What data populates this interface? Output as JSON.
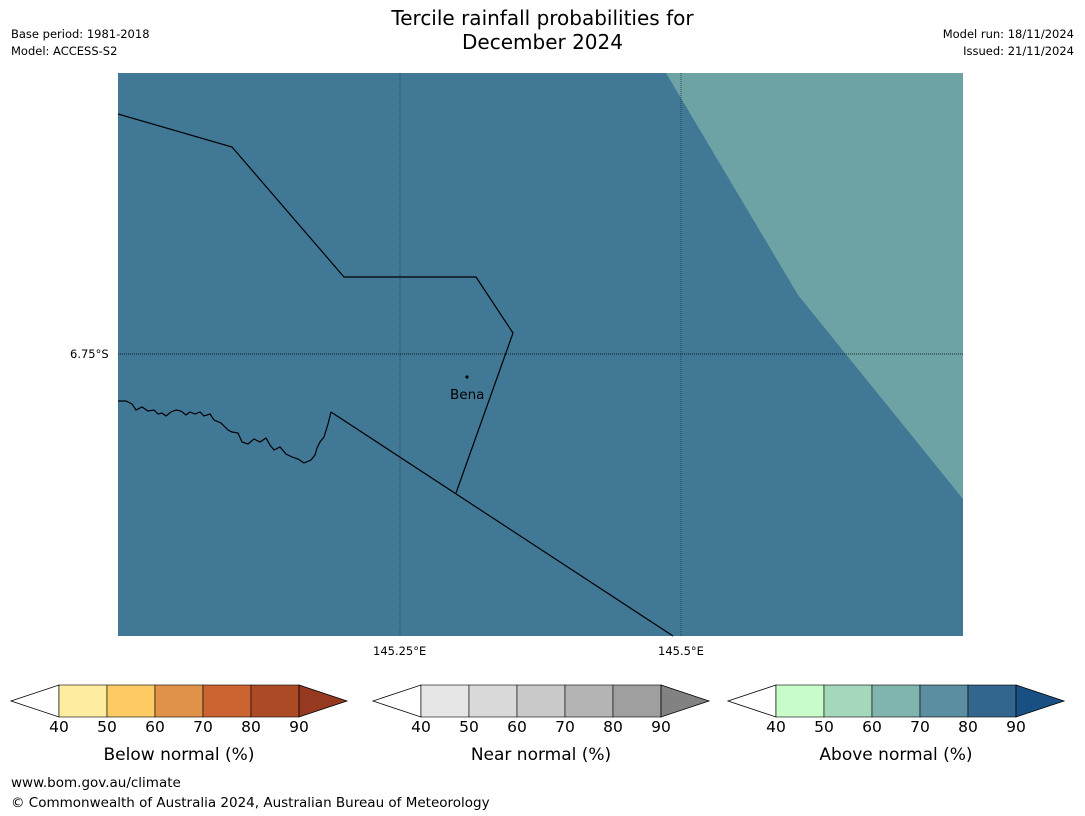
{
  "title": {
    "line1": "Tercile rainfall probabilities for",
    "line2": "December 2024"
  },
  "meta_left": {
    "base_period": "Base period: 1981-2018",
    "model": "Model: ACCESS-S2"
  },
  "meta_right": {
    "model_run": "Model run: 18/11/2024",
    "issued": "Issued: 21/11/2024"
  },
  "map": {
    "lat_label": "6.75°S",
    "lon_labels": [
      "145.25°E",
      "145.5°E"
    ],
    "place_label": "Bena",
    "colors": {
      "above_60_70": "#6ea3a6",
      "above_80_90": "#407896",
      "border": "#000000"
    }
  },
  "colorbars": [
    {
      "label": "Below normal (%)",
      "ticks": [
        "40",
        "50",
        "60",
        "70",
        "80",
        "90"
      ],
      "colors": [
        "#ffffff",
        "#feeca0",
        "#fdca64",
        "#e09248",
        "#cc6432",
        "#ad4a26",
        "#953a20"
      ]
    },
    {
      "label": "Near normal (%)",
      "ticks": [
        "40",
        "50",
        "60",
        "70",
        "80",
        "90"
      ],
      "colors": [
        "#ffffff",
        "#e6e6e6",
        "#d9d9d9",
        "#c9c9c9",
        "#b4b4b4",
        "#9f9f9f",
        "#828282"
      ]
    },
    {
      "label": "Above normal (%)",
      "ticks": [
        "40",
        "50",
        "60",
        "70",
        "80",
        "90"
      ],
      "colors": [
        "#ffffff",
        "#c8fcc8",
        "#a4d8bb",
        "#80b4ae",
        "#5a8ea0",
        "#33668e",
        "#1a4f84"
      ]
    }
  ],
  "footer": {
    "url": "www.bom.gov.au/climate",
    "copyright": "© Commonwealth of Australia 2024, Australian Bureau of Meteorology"
  }
}
